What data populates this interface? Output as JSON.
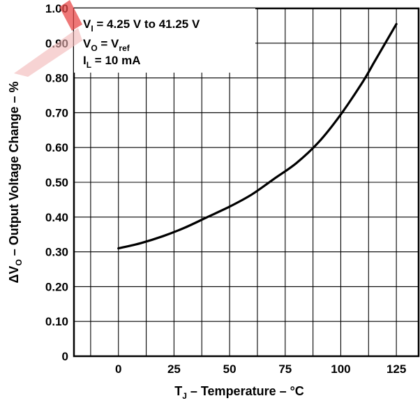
{
  "chart_data": {
    "type": "line",
    "xlabel": {
      "main": "T",
      "sub": "J",
      "rest": " – Temperature – °C"
    },
    "ylabel": {
      "main": "ΔV",
      "sub": "O",
      "rest": " – Output Voltage Change – %"
    },
    "xlim": [
      -20,
      135
    ],
    "ylim": [
      0,
      1.0
    ],
    "x_ticks": [
      "0",
      "25",
      "50",
      "75",
      "100",
      "125"
    ],
    "x_tick_values": [
      0,
      25,
      50,
      75,
      100,
      125
    ],
    "y_ticks": [
      "0",
      "0.10",
      "0.20",
      "0.30",
      "0.40",
      "0.50",
      "0.60",
      "0.70",
      "0.80",
      "0.90",
      "1.00"
    ],
    "y_tick_values": [
      0,
      0.1,
      0.2,
      0.3,
      0.4,
      0.5,
      0.6,
      0.7,
      0.8,
      0.9,
      1.0
    ],
    "grid": true,
    "annotations": [
      {
        "main": "V",
        "sub": "I",
        "rest": " = 4.25 V to 41.25 V"
      },
      {
        "main": "V",
        "sub": "O",
        "rest": " = V",
        "sub2": "ref"
      },
      {
        "main": "I",
        "sub": "L",
        "rest": " = 10 mA"
      }
    ],
    "series": [
      {
        "x": [
          0,
          10,
          20,
          30,
          40,
          50,
          60,
          70,
          80,
          90,
          100,
          110,
          115,
          120,
          125
        ],
        "y": [
          0.31,
          0.325,
          0.345,
          0.37,
          0.4,
          0.43,
          0.465,
          0.51,
          0.555,
          0.615,
          0.695,
          0.79,
          0.845,
          0.9,
          0.955
        ]
      }
    ],
    "line_color": "#000000"
  }
}
